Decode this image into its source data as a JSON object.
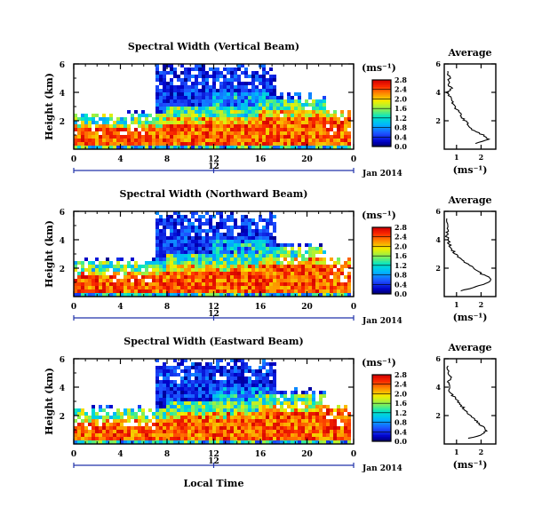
{
  "figure": {
    "xlabel": "Local Time",
    "date_label": "Jan 2014",
    "colorbar_unit": "(ms⁻¹)",
    "profile_xlabel": "(ms⁻¹)",
    "ylabel": "Height (km)"
  },
  "chart_data": [
    {
      "type": "heatmap",
      "title": "Spectral Width (Vertical Beam)",
      "ylabel": "Height (km)",
      "xlabel": "Local Time",
      "x_ticks": [
        "0",
        "4",
        "8",
        "12",
        "16",
        "20",
        "0"
      ],
      "x_range": [
        0,
        24
      ],
      "sub_tick_label": "12",
      "date_label": "Jan 2014",
      "y_ticks": [
        "2",
        "4",
        "6"
      ],
      "y_range": [
        0,
        6
      ],
      "colorbar": {
        "unit": "(ms⁻¹)",
        "ticks": [
          "0.0",
          "0.4",
          "0.8",
          "1.2",
          "1.6",
          "2.0",
          "2.4",
          "2.8"
        ],
        "range": [
          0,
          2.8
        ]
      },
      "profile": {
        "title": "Average",
        "x_ticks": [
          "1",
          "2"
        ],
        "x_range": [
          0.5,
          2.6
        ],
        "y_ticks": [
          "2",
          "4",
          "6"
        ],
        "y_range": [
          0,
          6
        ],
        "xlabel": "(ms⁻¹)",
        "heights": [
          0.4,
          0.7,
          1.0,
          1.3,
          1.6,
          1.9,
          2.2,
          2.5,
          2.8,
          3.1,
          3.4,
          3.7,
          4.0,
          4.3,
          4.6,
          5.0,
          5.5
        ],
        "values": [
          1.8,
          2.3,
          2.1,
          1.7,
          1.5,
          1.4,
          1.25,
          1.15,
          1.0,
          0.9,
          0.8,
          0.75,
          0.6,
          0.8,
          0.65,
          0.7,
          0.65
        ]
      }
    },
    {
      "type": "heatmap",
      "title": "Spectral Width (Northward Beam)",
      "ylabel": "Height (km)",
      "xlabel": "Local Time",
      "x_ticks": [
        "0",
        "4",
        "8",
        "12",
        "16",
        "20",
        "0"
      ],
      "x_range": [
        0,
        24
      ],
      "sub_tick_label": "12",
      "date_label": "Jan 2014",
      "y_ticks": [
        "2",
        "4",
        "6"
      ],
      "y_range": [
        0,
        6
      ],
      "colorbar": {
        "unit": "(ms⁻¹)",
        "ticks": [
          "0.0",
          "0.4",
          "0.8",
          "1.2",
          "1.6",
          "2.0",
          "2.4",
          "2.8"
        ],
        "range": [
          0,
          2.8
        ]
      },
      "profile": {
        "title": "Average",
        "x_ticks": [
          "1",
          "2"
        ],
        "x_range": [
          0.5,
          2.6
        ],
        "y_ticks": [
          "2",
          "4",
          "6"
        ],
        "y_range": [
          0,
          6
        ],
        "xlabel": "(ms⁻¹)",
        "heights": [
          0.4,
          0.7,
          1.0,
          1.3,
          1.6,
          1.9,
          2.2,
          2.5,
          2.8,
          3.1,
          3.4,
          3.7,
          4.0,
          4.3,
          4.6,
          5.0,
          5.5
        ],
        "values": [
          1.2,
          1.8,
          2.3,
          2.4,
          2.0,
          1.8,
          1.5,
          1.25,
          1.05,
          0.9,
          0.8,
          0.7,
          0.65,
          0.6,
          0.65,
          0.7,
          0.6
        ]
      }
    },
    {
      "type": "heatmap",
      "title": "Spectral Width (Eastward Beam)",
      "ylabel": "Height (km)",
      "xlabel": "Local Time",
      "x_ticks": [
        "0",
        "4",
        "8",
        "12",
        "16",
        "20",
        "0"
      ],
      "x_range": [
        0,
        24
      ],
      "sub_tick_label": "12",
      "date_label": "Jan 2014",
      "y_ticks": [
        "2",
        "4",
        "6"
      ],
      "y_range": [
        0,
        6
      ],
      "colorbar": {
        "unit": "(ms⁻¹)",
        "ticks": [
          "0.0",
          "0.4",
          "0.8",
          "1.2",
          "1.6",
          "2.0",
          "2.4",
          "2.8"
        ],
        "range": [
          0,
          2.8
        ]
      },
      "profile": {
        "title": "Average",
        "x_ticks": [
          "1",
          "2"
        ],
        "x_range": [
          0.5,
          2.6
        ],
        "y_ticks": [
          "2",
          "4",
          "6"
        ],
        "y_range": [
          0,
          6
        ],
        "xlabel": "(ms⁻¹)",
        "heights": [
          0.4,
          0.7,
          1.0,
          1.3,
          1.6,
          1.9,
          2.2,
          2.5,
          2.8,
          3.1,
          3.4,
          3.7,
          4.0,
          4.3,
          4.6,
          5.0,
          5.5
        ],
        "values": [
          1.5,
          2.1,
          2.2,
          2.0,
          1.8,
          1.6,
          1.45,
          1.3,
          1.15,
          1.0,
          0.85,
          0.75,
          0.7,
          0.65,
          0.75,
          0.7,
          0.65
        ]
      }
    }
  ]
}
